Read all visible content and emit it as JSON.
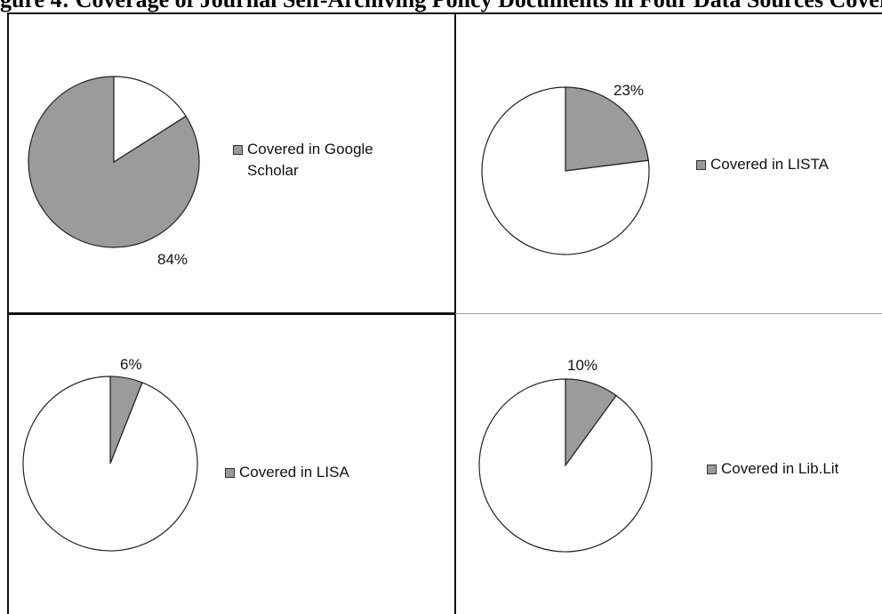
{
  "figure_caption": "gure 4: Coverage of Journal Self-Archiving Policy Documents in Four Data Sources Coverage",
  "colors": {
    "covered": "#9b9b9b",
    "uncovered": "#ffffff",
    "outline": "#222222",
    "border": "#111111"
  },
  "chart_data": [
    {
      "type": "pie",
      "title": "",
      "legend": [
        "Covered in Google Scholar"
      ],
      "legend_position": "right",
      "slices": [
        {
          "label": "Covered in Google Scholar",
          "value": 84
        },
        {
          "label": "",
          "value": 16
        }
      ],
      "data_label": "84%"
    },
    {
      "type": "pie",
      "title": "",
      "legend": [
        "Covered in LISTA"
      ],
      "legend_position": "right",
      "slices": [
        {
          "label": "Covered in LISTA",
          "value": 23
        },
        {
          "label": "",
          "value": 77
        }
      ],
      "data_label": "23%"
    },
    {
      "type": "pie",
      "title": "",
      "legend": [
        "Covered in LISA"
      ],
      "legend_position": "right",
      "slices": [
        {
          "label": "Covered in LISA",
          "value": 6
        },
        {
          "label": "",
          "value": 94
        }
      ],
      "data_label": "6%"
    },
    {
      "type": "pie",
      "title": "",
      "legend": [
        "Covered in Lib.Lit"
      ],
      "legend_position": "right",
      "slices": [
        {
          "label": "Covered in Lib.Lit",
          "value": 10
        },
        {
          "label": "",
          "value": 90
        }
      ],
      "data_label": "10%"
    }
  ]
}
